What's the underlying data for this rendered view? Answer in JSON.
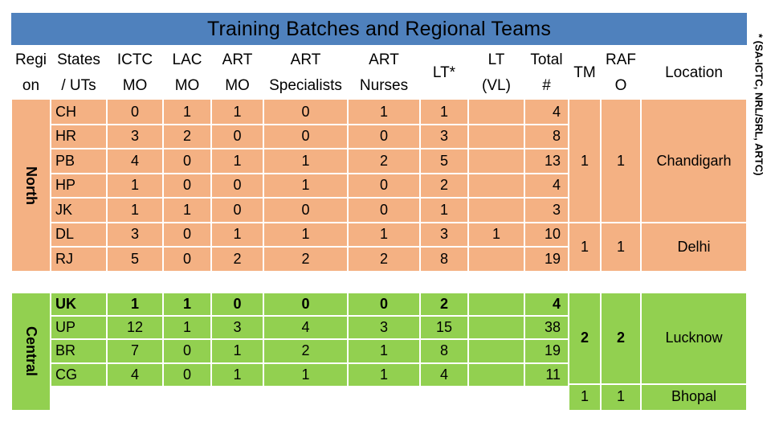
{
  "title": "Training Batches and Regional Teams",
  "side_note": "* (SA-ICTC, NRL/SRL, ARTC)",
  "headers": [
    [
      "Regi",
      "on"
    ],
    [
      "States",
      "/ UTs"
    ],
    [
      "ICTC",
      "MO"
    ],
    [
      "LAC",
      "MO"
    ],
    [
      "ART",
      "MO"
    ],
    [
      "ART",
      "Specialists"
    ],
    [
      "ART",
      "Nurses"
    ],
    [
      "LT*"
    ],
    [
      "LT",
      "(VL)"
    ],
    [
      "Total",
      "#"
    ],
    [
      "TM"
    ],
    [
      "RAF",
      "O"
    ],
    [
      "Location"
    ]
  ],
  "regions": [
    {
      "label": "North",
      "rows": [
        {
          "state": "CH",
          "ictc": "0",
          "lac": "1",
          "artmo": "1",
          "spec": "0",
          "nurses": "1",
          "lt": "1",
          "ltvl": "",
          "total": "4"
        },
        {
          "state": "HR",
          "ictc": "3",
          "lac": "2",
          "artmo": "0",
          "spec": "0",
          "nurses": "0",
          "lt": "3",
          "ltvl": "",
          "total": "8"
        },
        {
          "state": "PB",
          "ictc": "4",
          "lac": "0",
          "artmo": "1",
          "spec": "1",
          "nurses": "2",
          "lt": "5",
          "ltvl": "",
          "total": "13"
        },
        {
          "state": "HP",
          "ictc": "1",
          "lac": "0",
          "artmo": "0",
          "spec": "1",
          "nurses": "0",
          "lt": "2",
          "ltvl": "",
          "total": "4"
        },
        {
          "state": "JK",
          "ictc": "1",
          "lac": "1",
          "artmo": "0",
          "spec": "0",
          "nurses": "0",
          "lt": "1",
          "ltvl": "",
          "total": "3"
        },
        {
          "state": "DL",
          "ictc": "3",
          "lac": "0",
          "artmo": "1",
          "spec": "1",
          "nurses": "1",
          "lt": "3",
          "ltvl": "1",
          "total": "10"
        },
        {
          "state": "RJ",
          "ictc": "5",
          "lac": "0",
          "artmo": "2",
          "spec": "2",
          "nurses": "2",
          "lt": "8",
          "ltvl": "",
          "total": "19"
        }
      ],
      "teams": [
        {
          "tm": "1",
          "rafo": "1",
          "location": "Chandigarh"
        },
        {
          "tm": "1",
          "rafo": "1",
          "location": "Delhi"
        }
      ]
    },
    {
      "label": "Central",
      "rows": [
        {
          "state": "UK",
          "ictc": "1",
          "lac": "1",
          "artmo": "0",
          "spec": "0",
          "nurses": "0",
          "lt": "2",
          "ltvl": "",
          "total": "4"
        },
        {
          "state": "UP",
          "ictc": "12",
          "lac": "1",
          "artmo": "3",
          "spec": "4",
          "nurses": "3",
          "lt": "15",
          "ltvl": "",
          "total": "38"
        },
        {
          "state": "BR",
          "ictc": "7",
          "lac": "0",
          "artmo": "1",
          "spec": "2",
          "nurses": "1",
          "lt": "8",
          "ltvl": "",
          "total": "19"
        },
        {
          "state": "CG",
          "ictc": "4",
          "lac": "0",
          "artmo": "1",
          "spec": "1",
          "nurses": "1",
          "lt": "4",
          "ltvl": "",
          "total": "11"
        },
        {
          "state": "",
          "ictc": "",
          "lac": "",
          "artmo": "",
          "spec": "",
          "nurses": "",
          "lt": "",
          "ltvl": "",
          "total": ""
        }
      ],
      "teams": [
        {
          "tm": "2",
          "rafo": "2",
          "location": "Lucknow"
        },
        {
          "tm": "1",
          "rafo": "1",
          "location": "Bhopal"
        }
      ]
    }
  ],
  "colors": {
    "title_bar": "#4f81bd",
    "north": "#f4b183",
    "central": "#92d050"
  }
}
